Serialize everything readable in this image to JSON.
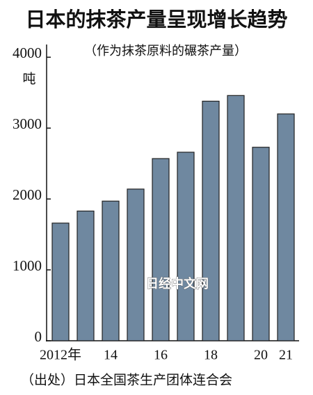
{
  "chart_data": {
    "type": "bar",
    "title": "日本的抹茶产量呈现增长趋势",
    "subtitle": "（作为抹茶原料的碾茶产量）",
    "y_label": "吨",
    "watermark": "日经中文网",
    "source": "（出处）日本全国茶生产团体连合会",
    "categories": [
      "2012年",
      null,
      "14",
      null,
      "16",
      null,
      "18",
      null,
      "20",
      "21"
    ],
    "values": [
      1660,
      1830,
      1970,
      2140,
      2570,
      2660,
      3380,
      3460,
      2730,
      3200
    ],
    "color": "#6f88a0",
    "ylim": [
      0,
      4150
    ],
    "yticks": [
      0,
      1000,
      2000,
      3000,
      4000
    ],
    "grid": false
  }
}
